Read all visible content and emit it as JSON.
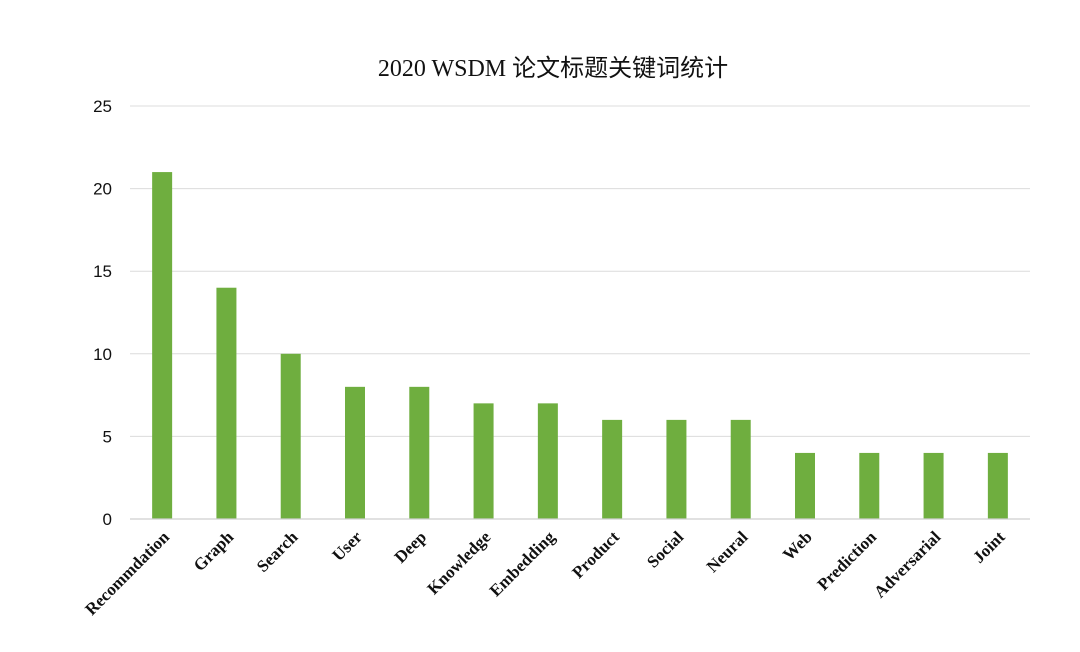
{
  "chart_data": {
    "type": "bar",
    "title": "2020 WSDM 论文标题关键词统计",
    "xlabel": "",
    "ylabel": "",
    "ylim": [
      0,
      25
    ],
    "yticks": [
      "0",
      "5",
      "10",
      "15",
      "20",
      "25"
    ],
    "grid": true,
    "legend": "none",
    "bar_color": "#6fae3f",
    "categories": [
      "Recommdation",
      "Graph",
      "Search",
      "User",
      "Deep",
      "Knowledge",
      "Embedding",
      "Product",
      "Social",
      "Neural",
      "Web",
      "Prediction",
      "Adversarial",
      "Joint"
    ],
    "values": [
      21,
      14,
      10,
      8,
      8,
      7,
      7,
      6,
      6,
      6,
      4,
      4,
      4,
      4
    ]
  }
}
